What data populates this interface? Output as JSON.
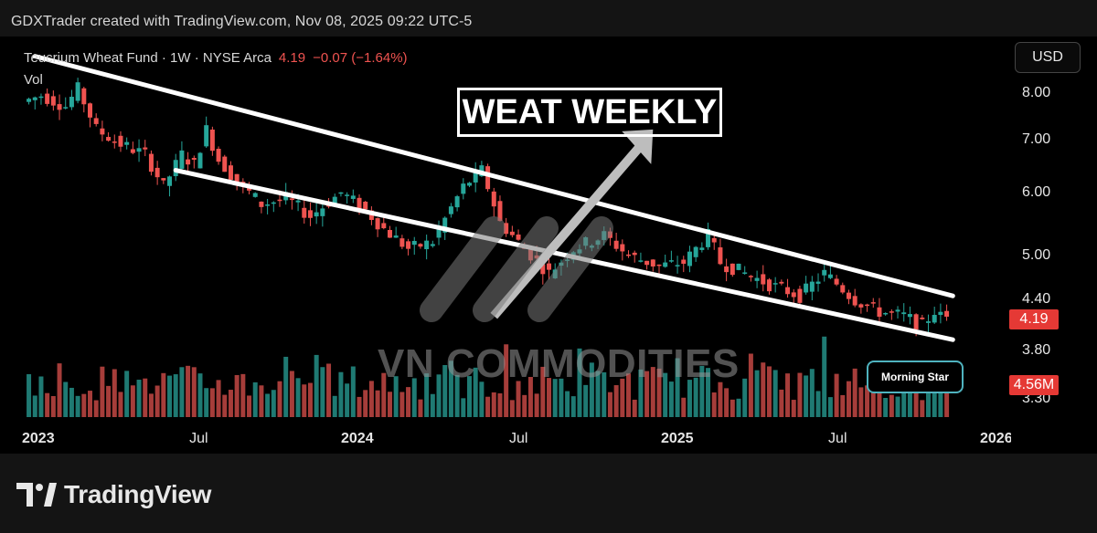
{
  "header": {
    "text": "GDXTrader created with TradingView.com, Nov 08, 2025 09:22 UTC-5"
  },
  "legend": {
    "symbol": "Teucrium Wheat Fund · 1W · NYSE Arca",
    "price": "4.19",
    "change": "−0.07 (−1.64%)",
    "volume_label": "Vol"
  },
  "currency_button": "USD",
  "title_annotation": "WEAT WEEKLY",
  "watermark_text": "VN COMMODITIES",
  "callout": "Morning Star",
  "last_price_badge": "4.19",
  "last_volume_badge": "4.56M",
  "footer_logo_text": "TradingView",
  "colors": {
    "up": "#26a69a",
    "down": "#ef5350",
    "volume_up": "#1f7a73",
    "volume_down": "#a63d3a",
    "badge": "#e53935",
    "callout_border": "#4fb3bf"
  },
  "chart_data": {
    "type": "candlestick",
    "title": "Teucrium Wheat Fund · 1W · NYSE Arca",
    "y_scale": "log",
    "y_ticks": [
      "8.00",
      "7.00",
      "6.00",
      "5.00",
      "4.40",
      "3.80",
      "3.30"
    ],
    "x_ticks": [
      {
        "label": "2023",
        "date": "2023-01-01",
        "year": true
      },
      {
        "label": "Jul",
        "date": "2023-07-01",
        "year": false
      },
      {
        "label": "2024",
        "date": "2024-01-01",
        "year": true
      },
      {
        "label": "Jul",
        "date": "2024-07-01",
        "year": false
      },
      {
        "label": "2025",
        "date": "2025-01-01",
        "year": true
      },
      {
        "label": "Jul",
        "date": "2025-07-01",
        "year": false
      },
      {
        "label": "2026",
        "date": "2026-01-01",
        "year": true
      }
    ],
    "price_path": [
      [
        "2022-12-19",
        7.8
      ],
      [
        "2023-01-09",
        7.95
      ],
      [
        "2023-02-06",
        7.7
      ],
      [
        "2023-02-20",
        8.1
      ],
      [
        "2023-03-13",
        7.2
      ],
      [
        "2023-04-10",
        6.9
      ],
      [
        "2023-05-08",
        6.7
      ],
      [
        "2023-05-29",
        6.1
      ],
      [
        "2023-06-19",
        6.7
      ],
      [
        "2023-07-03",
        6.5
      ],
      [
        "2023-07-17",
        7.2
      ],
      [
        "2023-07-31",
        6.6
      ],
      [
        "2023-08-21",
        6.2
      ],
      [
        "2023-09-18",
        5.8
      ],
      [
        "2023-10-16",
        5.9
      ],
      [
        "2023-11-13",
        5.6
      ],
      [
        "2023-12-18",
        6.0
      ],
      [
        "2024-01-15",
        5.7
      ],
      [
        "2024-02-05",
        5.4
      ],
      [
        "2024-03-04",
        5.1
      ],
      [
        "2024-04-01",
        5.2
      ],
      [
        "2024-05-06",
        6.1
      ],
      [
        "2024-05-27",
        6.4
      ],
      [
        "2024-06-17",
        5.5
      ],
      [
        "2024-07-15",
        5.1
      ],
      [
        "2024-08-12",
        4.75
      ],
      [
        "2024-09-09",
        5.1
      ],
      [
        "2024-10-14",
        5.3
      ],
      [
        "2024-11-11",
        5.0
      ],
      [
        "2024-12-16",
        4.85
      ],
      [
        "2025-01-13",
        4.9
      ],
      [
        "2025-02-10",
        5.3
      ],
      [
        "2025-02-24",
        4.9
      ],
      [
        "2025-03-24",
        4.75
      ],
      [
        "2025-04-21",
        4.6
      ],
      [
        "2025-05-26",
        4.45
      ],
      [
        "2025-06-23",
        4.75
      ],
      [
        "2025-07-28",
        4.4
      ],
      [
        "2025-08-25",
        4.25
      ],
      [
        "2025-09-22",
        4.2
      ],
      [
        "2025-10-13",
        4.08
      ],
      [
        "2025-10-27",
        4.26
      ],
      [
        "2025-11-03",
        4.19
      ]
    ],
    "volume_scale_max": 9.0,
    "volume_unit": "M",
    "last_volume": 4.56,
    "trend_lines": [
      {
        "name": "upper-resistance",
        "from": [
          "2022-12-26",
          8.9
        ],
        "to": [
          "2025-11-10",
          4.45
        ]
      },
      {
        "name": "lower-support",
        "from": [
          "2023-06-05",
          6.4
        ],
        "to": [
          "2025-11-10",
          3.92
        ]
      }
    ],
    "arrow": {
      "from": [
        "2024-06-03",
        4.2
      ],
      "to": [
        "2024-12-02",
        7.2
      ]
    }
  }
}
